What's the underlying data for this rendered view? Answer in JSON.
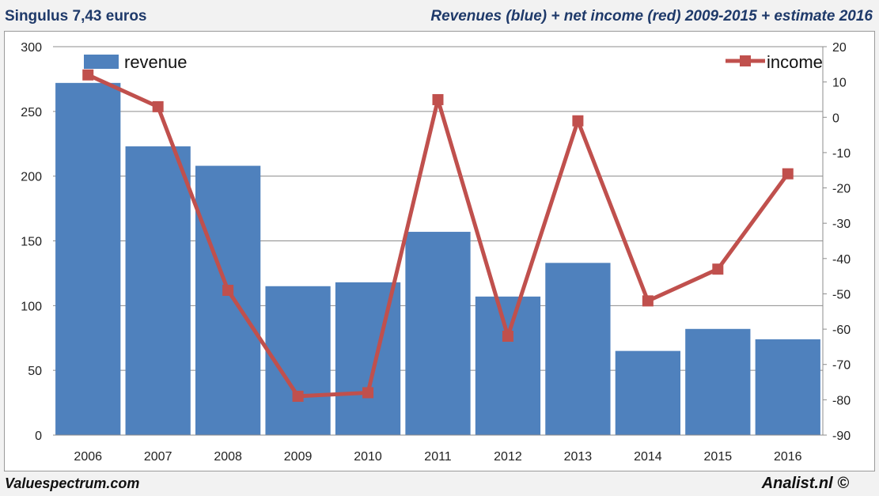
{
  "header": {
    "left_title": "Singulus  7,43 euros",
    "right_title": "Revenues (blue) + net income (red) 2009-2015 + estimate 2016"
  },
  "footer": {
    "left": "Valuespectrum.com",
    "right": "Analist.nl ©"
  },
  "colors": {
    "bar": "#4f81bd",
    "line": "#c0504d",
    "grid": "#8c8c8c",
    "title": "#1f3a6a"
  },
  "chart_data": {
    "type": "bar",
    "title": "Revenues (blue) + net income (red) 2009-2015 + estimate 2016",
    "categories": [
      "2006",
      "2007",
      "2008",
      "2009",
      "2010",
      "2011",
      "2012",
      "2013",
      "2014",
      "2015",
      "2016"
    ],
    "series": [
      {
        "name": "revenue",
        "type": "bar",
        "axis": "left",
        "values": [
          272,
          223,
          208,
          115,
          118,
          157,
          107,
          133,
          65,
          82,
          74
        ]
      },
      {
        "name": "income",
        "type": "line",
        "axis": "right",
        "values": [
          12,
          3,
          -49,
          -79,
          -78,
          5,
          -62,
          -1,
          -52,
          -43,
          -16
        ]
      }
    ],
    "y_left": {
      "range": [
        0,
        300
      ],
      "ticks": [
        "0",
        "50",
        "100",
        "150",
        "200",
        "250",
        "300"
      ]
    },
    "y_right": {
      "range": [
        -90,
        20
      ],
      "ticks": [
        "-90",
        "-80",
        "-70",
        "-60",
        "-50",
        "-40",
        "-30",
        "-20",
        "-10",
        "0",
        "10",
        "20"
      ]
    },
    "legend": [
      {
        "label": "revenue",
        "placement": "top-left"
      },
      {
        "label": "income",
        "placement": "top-right"
      }
    ],
    "grid": true
  }
}
